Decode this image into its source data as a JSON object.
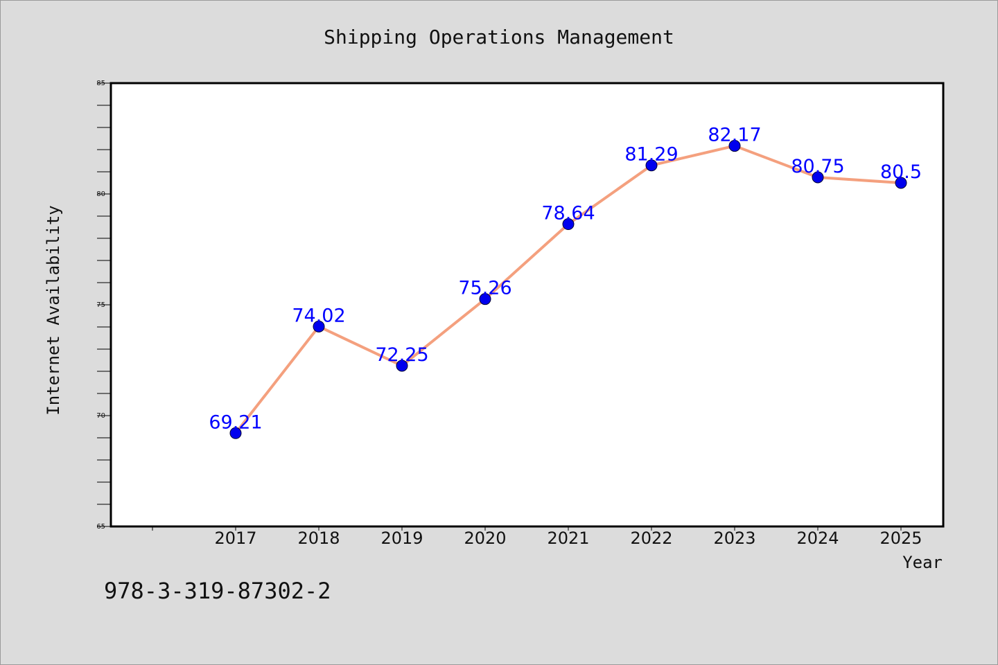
{
  "chart_data": {
    "type": "line",
    "title": "Shipping Operations Management",
    "xlabel": "Year",
    "ylabel": "Internet Availability",
    "categories": [
      "2017",
      "2018",
      "2019",
      "2020",
      "2021",
      "2022",
      "2023",
      "2024",
      "2025"
    ],
    "values": [
      69.21,
      74.02,
      72.25,
      75.26,
      78.64,
      81.29,
      82.17,
      80.75,
      80.5
    ],
    "data_labels": [
      "69.21",
      "74.02",
      "72.25",
      "75.26",
      "78.64",
      "81.29",
      "82.17",
      "80.75",
      "80.5"
    ],
    "ylim": [
      65,
      85
    ],
    "yticks": [
      "65",
      "70",
      "75",
      "80",
      "85"
    ],
    "grid": false,
    "line_color": "#f4a07e",
    "marker_color": "#0000ee",
    "label_color": "#0000ff"
  },
  "footer_text": "978-3-319-87302-2"
}
